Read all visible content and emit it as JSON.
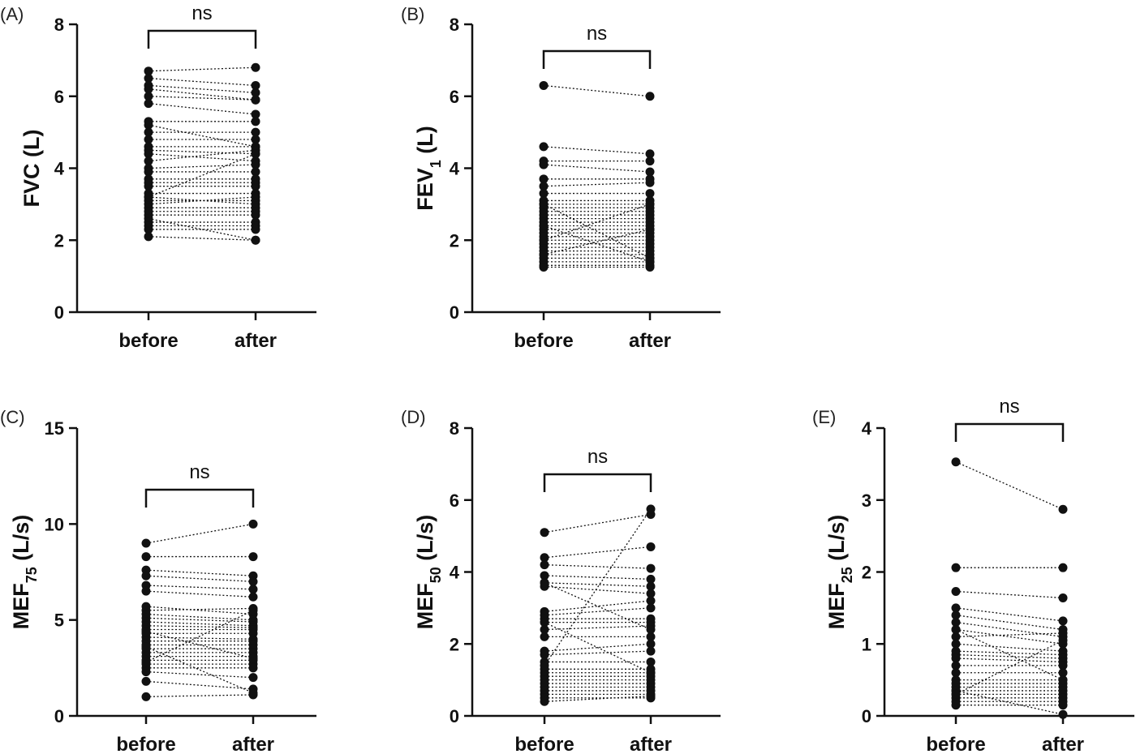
{
  "chart_data": [
    {
      "type": "scatter",
      "panel": "(A)",
      "ylabel": "FVC (L)",
      "categories": [
        "before",
        "after"
      ],
      "ylim": [
        0,
        8
      ],
      "yticks": [
        0,
        2,
        4,
        6,
        8
      ],
      "significance": "ns",
      "pairs": [
        [
          6.7,
          6.8
        ],
        [
          6.5,
          6.3
        ],
        [
          6.3,
          6.1
        ],
        [
          6.2,
          5.9
        ],
        [
          6.0,
          5.9
        ],
        [
          5.8,
          5.5
        ],
        [
          5.3,
          5.3
        ],
        [
          5.2,
          4.6
        ],
        [
          5.0,
          5.0
        ],
        [
          4.8,
          4.8
        ],
        [
          4.6,
          4.6
        ],
        [
          4.5,
          4.4
        ],
        [
          4.4,
          4.2
        ],
        [
          4.2,
          4.5
        ],
        [
          4.0,
          4.1
        ],
        [
          3.9,
          3.9
        ],
        [
          3.7,
          3.7
        ],
        [
          3.6,
          3.6
        ],
        [
          3.5,
          3.5
        ],
        [
          3.3,
          3.3
        ],
        [
          3.2,
          3.0
        ],
        [
          3.1,
          3.1
        ],
        [
          3.0,
          3.2
        ],
        [
          2.9,
          2.9
        ],
        [
          2.8,
          2.8
        ],
        [
          2.7,
          2.7
        ],
        [
          2.6,
          2.0
        ],
        [
          2.5,
          2.5
        ],
        [
          2.4,
          2.4
        ],
        [
          2.3,
          2.3
        ],
        [
          2.1,
          2.0
        ],
        [
          3.2,
          4.4
        ]
      ]
    },
    {
      "type": "scatter",
      "panel": "(B)",
      "ylabel": "FEV1 (L)",
      "ylabel_main": "FEV",
      "ylabel_sub": "1",
      "ylabel_unit": " (L)",
      "categories": [
        "before",
        "after"
      ],
      "ylim": [
        0,
        8
      ],
      "yticks": [
        0,
        2,
        4,
        6,
        8
      ],
      "significance": "ns",
      "pairs": [
        [
          6.3,
          6.0
        ],
        [
          4.6,
          4.4
        ],
        [
          4.2,
          4.2
        ],
        [
          4.1,
          3.9
        ],
        [
          3.7,
          3.7
        ],
        [
          3.5,
          3.6
        ],
        [
          3.3,
          3.3
        ],
        [
          3.1,
          3.1
        ],
        [
          3.0,
          3.0
        ],
        [
          2.9,
          2.9
        ],
        [
          2.8,
          2.8
        ],
        [
          2.7,
          2.7
        ],
        [
          2.6,
          2.6
        ],
        [
          2.5,
          2.5
        ],
        [
          2.4,
          2.4
        ],
        [
          2.3,
          2.3
        ],
        [
          2.2,
          2.2
        ],
        [
          2.1,
          2.1
        ],
        [
          2.0,
          2.0
        ],
        [
          1.9,
          1.9
        ],
        [
          1.8,
          1.8
        ],
        [
          1.7,
          1.7
        ],
        [
          1.6,
          1.6
        ],
        [
          1.5,
          1.5
        ],
        [
          1.4,
          1.4
        ],
        [
          1.3,
          1.3
        ],
        [
          1.25,
          1.25
        ],
        [
          2.0,
          3.0
        ],
        [
          1.6,
          2.3
        ],
        [
          3.0,
          1.5
        ],
        [
          2.4,
          1.4
        ]
      ]
    },
    {
      "type": "scatter",
      "panel": "(C)",
      "ylabel": "MEF75 (L/s)",
      "ylabel_main": "MEF",
      "ylabel_sub": "75",
      "ylabel_unit": " (L/s)",
      "categories": [
        "before",
        "after"
      ],
      "ylim": [
        0,
        15
      ],
      "yticks": [
        0,
        5,
        10,
        15
      ],
      "significance": "ns",
      "pairs": [
        [
          9.0,
          10.0
        ],
        [
          8.3,
          8.3
        ],
        [
          7.6,
          7.3
        ],
        [
          7.3,
          7.0
        ],
        [
          6.8,
          6.6
        ],
        [
          6.5,
          6.2
        ],
        [
          5.7,
          5.3
        ],
        [
          5.5,
          5.6
        ],
        [
          5.3,
          5.0
        ],
        [
          5.1,
          4.9
        ],
        [
          4.9,
          4.7
        ],
        [
          4.7,
          4.6
        ],
        [
          4.5,
          4.5
        ],
        [
          4.3,
          4.3
        ],
        [
          4.1,
          4.0
        ],
        [
          3.9,
          3.9
        ],
        [
          3.7,
          3.7
        ],
        [
          3.5,
          3.5
        ],
        [
          3.3,
          3.3
        ],
        [
          3.1,
          3.1
        ],
        [
          2.9,
          2.9
        ],
        [
          2.7,
          2.7
        ],
        [
          2.5,
          2.5
        ],
        [
          2.3,
          2.0
        ],
        [
          1.8,
          1.4
        ],
        [
          1.0,
          1.1
        ],
        [
          2.8,
          5.5
        ],
        [
          3.6,
          1.2
        ],
        [
          4.4,
          3.0
        ]
      ]
    },
    {
      "type": "scatter",
      "panel": "(D)",
      "ylabel": "MEF50 (L/s)",
      "ylabel_main": "MEF",
      "ylabel_sub": "50",
      "ylabel_unit": " (L/s)",
      "categories": [
        "before",
        "after"
      ],
      "ylim": [
        0,
        8
      ],
      "yticks": [
        0,
        2,
        4,
        6,
        8
      ],
      "significance": "ns",
      "pairs": [
        [
          5.1,
          5.6
        ],
        [
          4.4,
          4.7
        ],
        [
          4.2,
          4.1
        ],
        [
          3.9,
          3.8
        ],
        [
          3.7,
          3.6
        ],
        [
          3.6,
          3.4
        ],
        [
          2.9,
          3.2
        ],
        [
          2.8,
          3.0
        ],
        [
          2.7,
          2.7
        ],
        [
          2.6,
          2.6
        ],
        [
          2.4,
          2.5
        ],
        [
          2.2,
          2.2
        ],
        [
          1.8,
          2.0
        ],
        [
          1.7,
          1.8
        ],
        [
          1.5,
          1.5
        ],
        [
          1.3,
          1.3
        ],
        [
          1.2,
          1.2
        ],
        [
          1.1,
          1.1
        ],
        [
          1.0,
          1.0
        ],
        [
          0.9,
          0.9
        ],
        [
          0.8,
          0.8
        ],
        [
          0.7,
          0.7
        ],
        [
          0.6,
          0.6
        ],
        [
          0.5,
          0.5
        ],
        [
          0.4,
          0.55
        ],
        [
          1.4,
          5.75
        ],
        [
          2.6,
          1.2
        ],
        [
          3.7,
          2.4
        ]
      ]
    },
    {
      "type": "scatter",
      "panel": "(E)",
      "ylabel": "MEF25 (L/s)",
      "ylabel_main": "MEF",
      "ylabel_sub": "25",
      "ylabel_unit": " (L/s)",
      "categories": [
        "before",
        "after"
      ],
      "ylim": [
        0,
        4
      ],
      "yticks": [
        0,
        1,
        2,
        3,
        4
      ],
      "significance": "ns",
      "pairs": [
        [
          3.53,
          2.87
        ],
        [
          2.06,
          2.06
        ],
        [
          1.73,
          1.64
        ],
        [
          1.5,
          1.32
        ],
        [
          1.4,
          1.2
        ],
        [
          1.3,
          1.1
        ],
        [
          1.2,
          1.0
        ],
        [
          1.1,
          1.15
        ],
        [
          1.0,
          0.9
        ],
        [
          0.9,
          0.85
        ],
        [
          0.85,
          0.8
        ],
        [
          0.8,
          0.75
        ],
        [
          0.7,
          0.7
        ],
        [
          0.6,
          0.6
        ],
        [
          0.5,
          0.5
        ],
        [
          0.45,
          0.45
        ],
        [
          0.4,
          0.4
        ],
        [
          0.35,
          0.35
        ],
        [
          0.3,
          0.3
        ],
        [
          0.25,
          0.25
        ],
        [
          0.2,
          0.2
        ],
        [
          0.15,
          0.15
        ],
        [
          0.35,
          0.02
        ],
        [
          1.2,
          0.5
        ],
        [
          0.3,
          1.05
        ]
      ]
    }
  ]
}
